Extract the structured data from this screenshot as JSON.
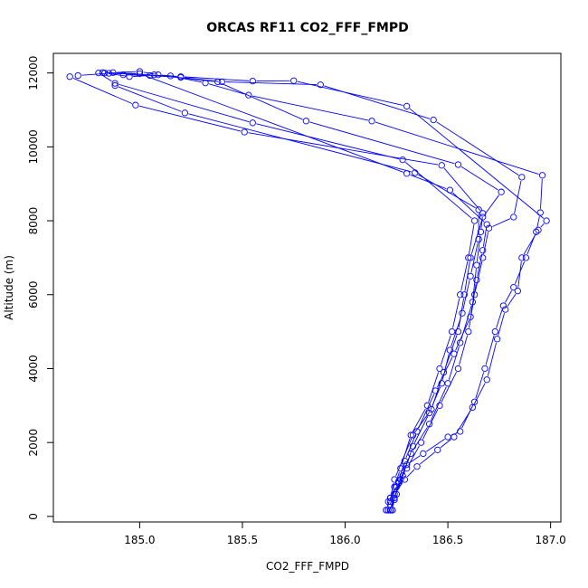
{
  "chart_data": {
    "type": "line",
    "title": "ORCAS RF11 CO2_FFF_FMPD",
    "xlabel": "CO2_FFF_FMPD",
    "ylabel": "Altitude (m)",
    "xlim": [
      184.58,
      187.05
    ],
    "ylim": [
      -150,
      12530
    ],
    "xticks": [
      185.0,
      185.5,
      186.0,
      186.5,
      187.0
    ],
    "yticks": [
      0,
      2000,
      4000,
      6000,
      8000,
      10000,
      12000
    ],
    "grid": false,
    "legend": "none",
    "marker": "open-circle",
    "color": "#0000ff",
    "series": [
      {
        "points": [
          [
            186.23,
            170
          ],
          [
            186.22,
            400
          ],
          [
            186.24,
            800
          ],
          [
            186.27,
            1300
          ],
          [
            186.32,
            2200
          ],
          [
            186.4,
            3000
          ],
          [
            186.46,
            4000
          ],
          [
            186.52,
            5000
          ],
          [
            186.56,
            6000
          ],
          [
            186.6,
            7000
          ],
          [
            186.63,
            8000
          ],
          [
            186.28,
            9650
          ],
          [
            185.55,
            10650
          ],
          [
            184.88,
            11720
          ],
          [
            184.8,
            12000
          ]
        ]
      },
      {
        "points": [
          [
            184.83,
            12000
          ],
          [
            184.95,
            11900
          ],
          [
            185.05,
            11930
          ],
          [
            185.2,
            11880
          ],
          [
            185.4,
            11760
          ],
          [
            185.88,
            11680
          ],
          [
            186.43,
            10730
          ],
          [
            186.86,
            9180
          ],
          [
            186.82,
            8100
          ],
          [
            186.7,
            7800
          ],
          [
            186.67,
            7000
          ],
          [
            186.63,
            6000
          ],
          [
            186.6,
            5000
          ],
          [
            186.55,
            4000
          ],
          [
            186.46,
            3000
          ],
          [
            186.37,
            2000
          ],
          [
            186.3,
            1300
          ],
          [
            186.25,
            800
          ],
          [
            186.21,
            400
          ],
          [
            186.21,
            170
          ]
        ]
      },
      {
        "points": [
          [
            186.23,
            170
          ],
          [
            186.24,
            500
          ],
          [
            186.27,
            1000
          ],
          [
            186.32,
            1700
          ],
          [
            186.41,
            2500
          ],
          [
            186.5,
            3600
          ],
          [
            186.56,
            4700
          ],
          [
            186.62,
            5800
          ],
          [
            186.64,
            6800
          ],
          [
            186.66,
            7700
          ],
          [
            186.67,
            8200
          ],
          [
            186.47,
            9500
          ],
          [
            185.51,
            10400
          ],
          [
            184.98,
            11130
          ],
          [
            184.66,
            11900
          ]
        ]
      },
      {
        "points": [
          [
            184.7,
            11930
          ],
          [
            184.85,
            11990
          ],
          [
            185.07,
            11950
          ],
          [
            185.38,
            11760
          ],
          [
            185.81,
            10700
          ],
          [
            186.55,
            9520
          ],
          [
            186.76,
            8780
          ],
          [
            186.67,
            8100
          ],
          [
            186.61,
            7000
          ],
          [
            186.58,
            6000
          ],
          [
            186.55,
            5000
          ],
          [
            186.48,
            3900
          ],
          [
            186.42,
            2900
          ],
          [
            186.33,
            2200
          ],
          [
            186.24,
            1000
          ],
          [
            186.22,
            500
          ],
          [
            186.2,
            170
          ]
        ]
      },
      {
        "points": [
          [
            186.22,
            170
          ],
          [
            186.25,
            600
          ],
          [
            186.28,
            1100
          ],
          [
            186.33,
            1900
          ],
          [
            186.41,
            2800
          ],
          [
            186.47,
            3600
          ],
          [
            186.51,
            4500
          ],
          [
            186.57,
            5500
          ],
          [
            186.61,
            6500
          ],
          [
            186.65,
            7500
          ],
          [
            186.65,
            8300
          ],
          [
            186.34,
            9300
          ],
          [
            185.22,
            10920
          ],
          [
            184.88,
            11660
          ]
        ]
      },
      {
        "points": [
          [
            184.92,
            11950
          ],
          [
            185.15,
            11920
          ],
          [
            185.32,
            11730
          ],
          [
            185.53,
            11400
          ],
          [
            186.13,
            10700
          ],
          [
            186.96,
            9230
          ],
          [
            186.95,
            8220
          ],
          [
            186.93,
            7700
          ],
          [
            186.88,
            7000
          ],
          [
            186.82,
            6200
          ],
          [
            186.77,
            5700
          ],
          [
            186.73,
            5000
          ],
          [
            186.68,
            4000
          ],
          [
            186.63,
            3100
          ],
          [
            186.56,
            2300
          ],
          [
            186.5,
            2150
          ],
          [
            186.38,
            1700
          ],
          [
            186.3,
            1400
          ],
          [
            186.26,
            900
          ],
          [
            186.22,
            500
          ],
          [
            186.2,
            170
          ]
        ]
      },
      {
        "points": [
          [
            186.22,
            170
          ],
          [
            186.24,
            450
          ],
          [
            186.26,
            950
          ],
          [
            186.29,
            1500
          ],
          [
            186.35,
            2300
          ],
          [
            186.44,
            3400
          ],
          [
            186.53,
            4400
          ],
          [
            186.61,
            5400
          ],
          [
            186.64,
            6400
          ],
          [
            186.67,
            7200
          ],
          [
            186.69,
            7900
          ],
          [
            186.51,
            8830
          ],
          [
            186.3,
            9280
          ],
          [
            185.0,
            11980
          ],
          [
            184.82,
            12010
          ]
        ]
      },
      {
        "points": [
          [
            184.87,
            12010
          ],
          [
            185.0,
            12040
          ],
          [
            185.09,
            11950
          ],
          [
            185.2,
            11900
          ],
          [
            185.55,
            11780
          ],
          [
            185.75,
            11790
          ],
          [
            186.3,
            11100
          ],
          [
            186.98,
            8000
          ],
          [
            186.94,
            7750
          ],
          [
            186.86,
            7000
          ],
          [
            186.84,
            6100
          ],
          [
            186.78,
            5600
          ],
          [
            186.74,
            4800
          ],
          [
            186.69,
            3700
          ],
          [
            186.62,
            2950
          ],
          [
            186.53,
            2150
          ],
          [
            186.45,
            1800
          ],
          [
            186.35,
            1350
          ],
          [
            186.29,
            1000
          ],
          [
            186.24,
            600
          ],
          [
            186.22,
            170
          ]
        ]
      }
    ]
  }
}
